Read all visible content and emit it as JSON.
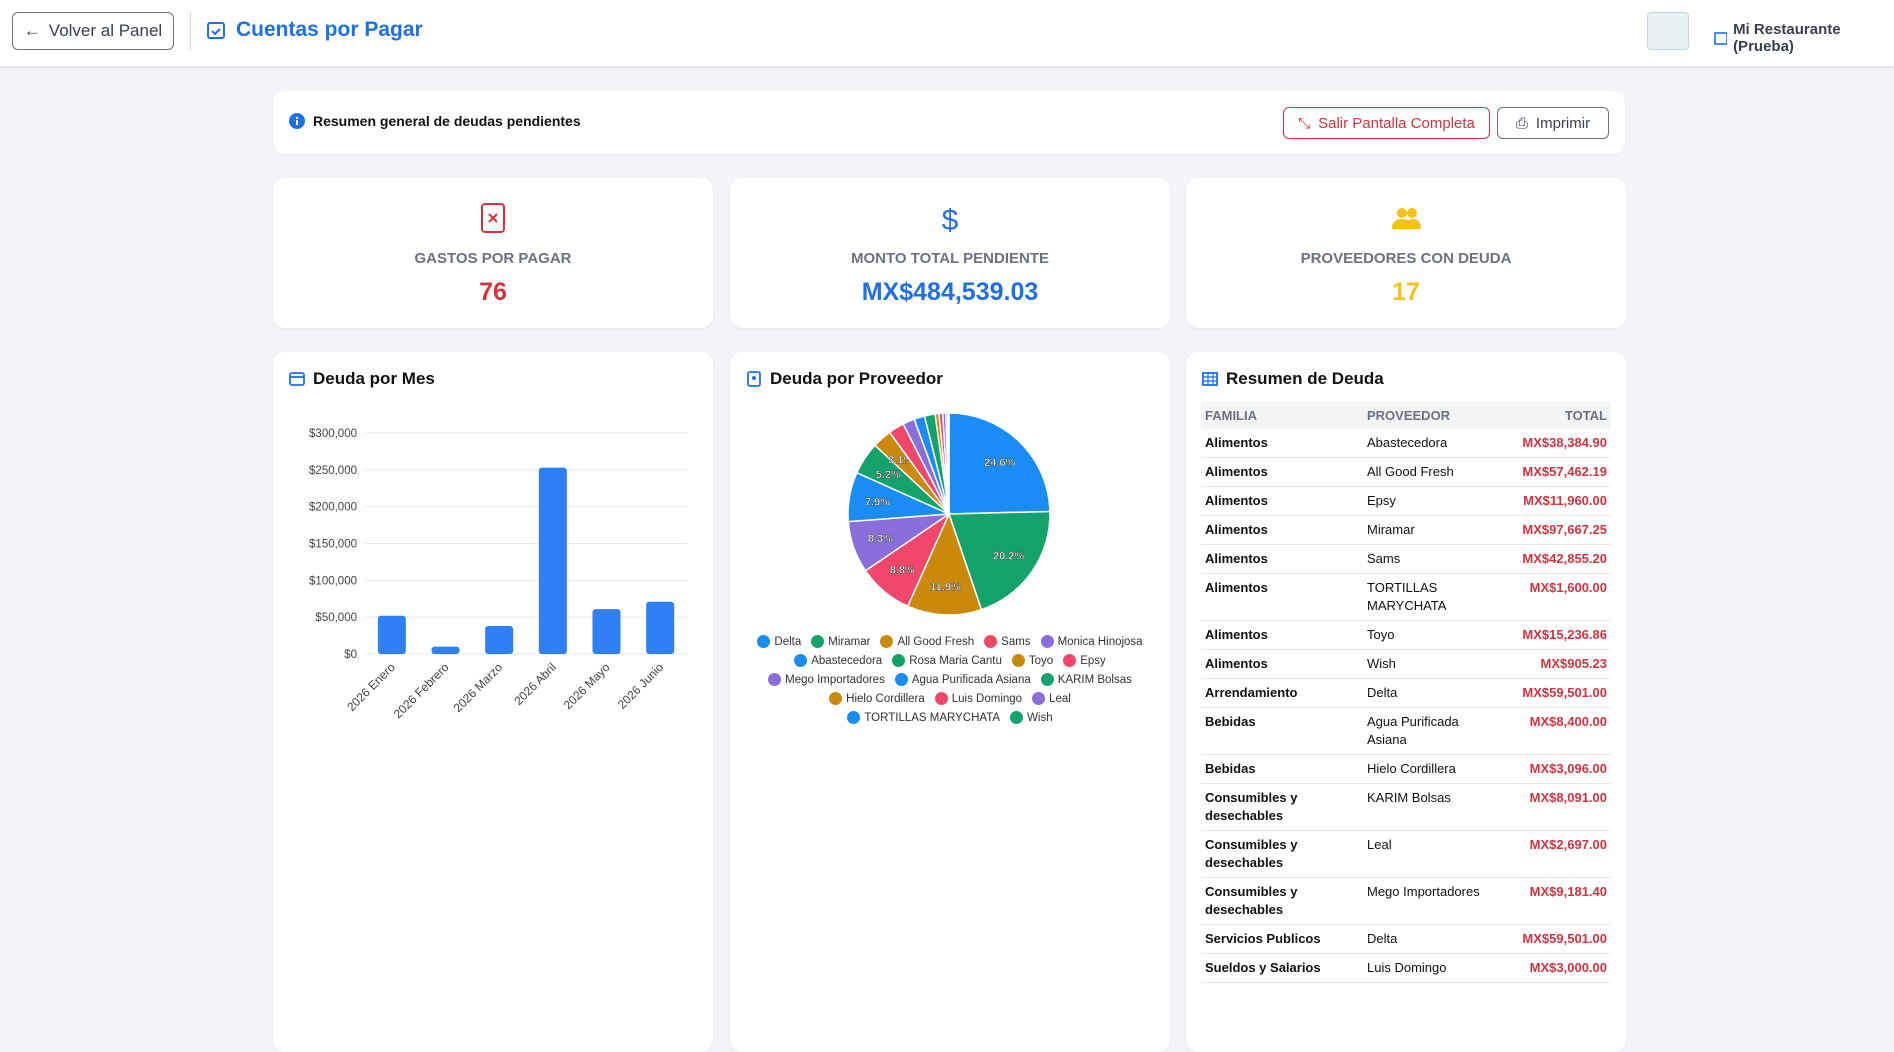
{
  "header": {
    "back": "Volver al Panel",
    "title": "Cuentas por Pagar",
    "restaurant": "Mi Restaurante (Prueba)"
  },
  "summary": {
    "text": "Resumen general de deudas pendientes",
    "exit_fullscreen": "Salir Pantalla Completa",
    "print": "Imprimir"
  },
  "cards": [
    {
      "label": "GASTOS POR PAGAR",
      "value": 76,
      "color": "#d0343f"
    },
    {
      "label": "MONTO TOTAL PENDIENTE",
      "value": "MX$484,539.03",
      "color": "#1f6fe5"
    },
    {
      "label": "PROVEEDORES CON DEUDA",
      "value": 17,
      "color": "#f4c21c"
    }
  ],
  "chart_data": [
    {
      "type": "bar",
      "title": "Deuda por Mes",
      "categories": [
        "2026 Enero",
        "2026 Febrero",
        "2026 Marzo",
        "2026 Abril",
        "2026 Mayo",
        "2026 Junio"
      ],
      "values": [
        52000,
        10000,
        38000,
        253000,
        61000,
        71000
      ],
      "color": "#2f80f5",
      "ylim": [
        0,
        300000
      ],
      "yticks": [
        {
          "value": 0,
          "label": "$0"
        },
        {
          "value": 50000,
          "label": "$50,000"
        },
        {
          "value": 100000,
          "label": "$100,000"
        },
        {
          "value": 150000,
          "label": "$150,000"
        },
        {
          "value": 200000,
          "label": "$200,000"
        },
        {
          "value": 250000,
          "label": "$250,000"
        },
        {
          "value": 300000,
          "label": "$300,000"
        }
      ],
      "grid": true
    },
    {
      "type": "pie",
      "title": "Deuda por Proveedor",
      "categories": [
        "Delta",
        "Miramar",
        "All Good Fresh",
        "Sams",
        "Monica Hinojosa",
        "Abastecedora",
        "Rosa Maria Cantu",
        "Toyo",
        "Epsy",
        "Mego Importadores",
        "Agua Purificada Asiana",
        "KARIM Bolsas",
        "Hielo Cordillera",
        "Luis Domingo",
        "Leal",
        "TORTILLAS MARYCHATA",
        "Wish"
      ],
      "values": [
        24.6,
        20.2,
        11.9,
        8.8,
        8.3,
        7.9,
        5.2,
        3.1,
        2.5,
        1.9,
        1.7,
        1.7,
        0.6,
        0.6,
        0.5,
        0.3,
        0.2
      ],
      "value_labels": [
        "24.6%",
        "20.2%",
        "11.9%",
        "8.8%",
        "8.3%",
        "7.9%",
        "5.2%",
        "3.1%",
        null,
        null,
        null,
        null,
        null,
        null,
        null,
        null,
        null
      ],
      "colors": [
        "#1a8cf5",
        "#13a36a",
        "#c98a0c",
        "#f2476b",
        "#8a6fdc",
        "#1a8cf5",
        "#13a36a",
        "#c98a0c",
        "#f2476b",
        "#8a6fdc",
        "#1a8cf5",
        "#13a36a",
        "#c98a0c",
        "#f2476b",
        "#8a6fdc",
        "#1a8cf5",
        "#13a36a"
      ]
    }
  ],
  "table": {
    "title": "Resumen de Deuda",
    "columns": [
      "FAMILIA",
      "PROVEEDOR",
      "TOTAL"
    ],
    "rows": [
      [
        "Alimentos",
        "Abastecedora",
        "MX$38,384.90"
      ],
      [
        "Alimentos",
        "All Good Fresh",
        "MX$57,462.19"
      ],
      [
        "Alimentos",
        "Epsy",
        "MX$11,960.00"
      ],
      [
        "Alimentos",
        "Miramar",
        "MX$97,667.25"
      ],
      [
        "Alimentos",
        "Sams",
        "MX$42,855.20"
      ],
      [
        "Alimentos",
        "TORTILLAS MARYCHATA",
        "MX$1,600.00"
      ],
      [
        "Alimentos",
        "Toyo",
        "MX$15,236.86"
      ],
      [
        "Alimentos",
        "Wish",
        "MX$905.23"
      ],
      [
        "Arrendamiento",
        "Delta",
        "MX$59,501.00"
      ],
      [
        "Bebidas",
        "Agua Purificada Asiana",
        "MX$8,400.00"
      ],
      [
        "Bebidas",
        "Hielo Cordillera",
        "MX$3,096.00"
      ],
      [
        "Consumibles y desechables",
        "KARIM Bolsas",
        "MX$8,091.00"
      ],
      [
        "Consumibles y desechables",
        "Leal",
        "MX$2,697.00"
      ],
      [
        "Consumibles y desechables",
        "Mego Importadores",
        "MX$9,181.40"
      ],
      [
        "Servicios Publicos",
        "Delta",
        "MX$59,501.00"
      ],
      [
        "Sueldos y Salarios",
        "Luis Domingo",
        "MX$3,000.00"
      ]
    ]
  }
}
